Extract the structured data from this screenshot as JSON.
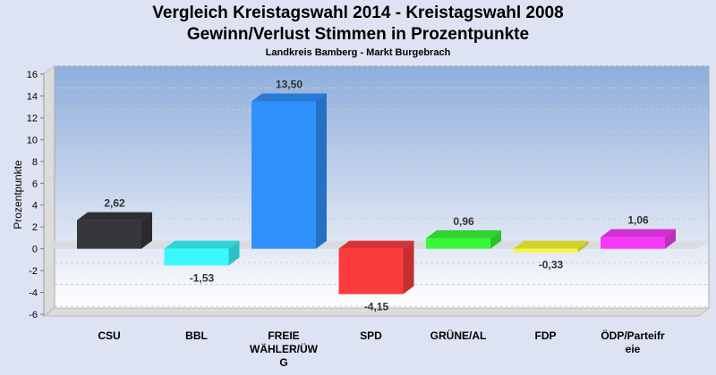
{
  "chart_data": {
    "type": "bar",
    "title": "Vergleich Kreistagswahl 2014 - Kreistagswahl 2008",
    "subtitle": "Gewinn/Verlust Stimmen in Prozentpunkte",
    "subsubtitle": "Landkreis Bamberg - Markt Burgebrach",
    "xlabel": "",
    "ylabel": "Prozentpunkte",
    "ylim": [
      -6,
      16
    ],
    "yticks": [
      16,
      14,
      12,
      10,
      8,
      6,
      4,
      2,
      0,
      -2,
      -4,
      -6
    ],
    "grid": true,
    "legend": "none",
    "categories": [
      "CSU",
      "BBL",
      "FREIE WÄHLER/ÜWG",
      "SPD",
      "GRÜNE/AL",
      "FDP",
      "ÖDP/Parteifreie"
    ],
    "category_label_lines": [
      [
        "CSU"
      ],
      [
        "BBL"
      ],
      [
        "FREIE",
        "WÄHLER/ÜW",
        "G"
      ],
      [
        "SPD"
      ],
      [
        "GRÜNE/AL"
      ],
      [
        "FDP"
      ],
      [
        "ÖDP/Parteifr",
        "eie"
      ]
    ],
    "values": [
      2.62,
      -1.53,
      13.5,
      -4.15,
      0.96,
      -0.33,
      1.06
    ],
    "value_labels": [
      "2,62",
      "-1,53",
      "13,50",
      "-4,15",
      "0,96",
      "-0,33",
      "1,06"
    ],
    "colors": [
      "#35373b",
      "#38f8fc",
      "#3090fc",
      "#fc3c3c",
      "#38f838",
      "#f8f838",
      "#f838f8"
    ]
  }
}
